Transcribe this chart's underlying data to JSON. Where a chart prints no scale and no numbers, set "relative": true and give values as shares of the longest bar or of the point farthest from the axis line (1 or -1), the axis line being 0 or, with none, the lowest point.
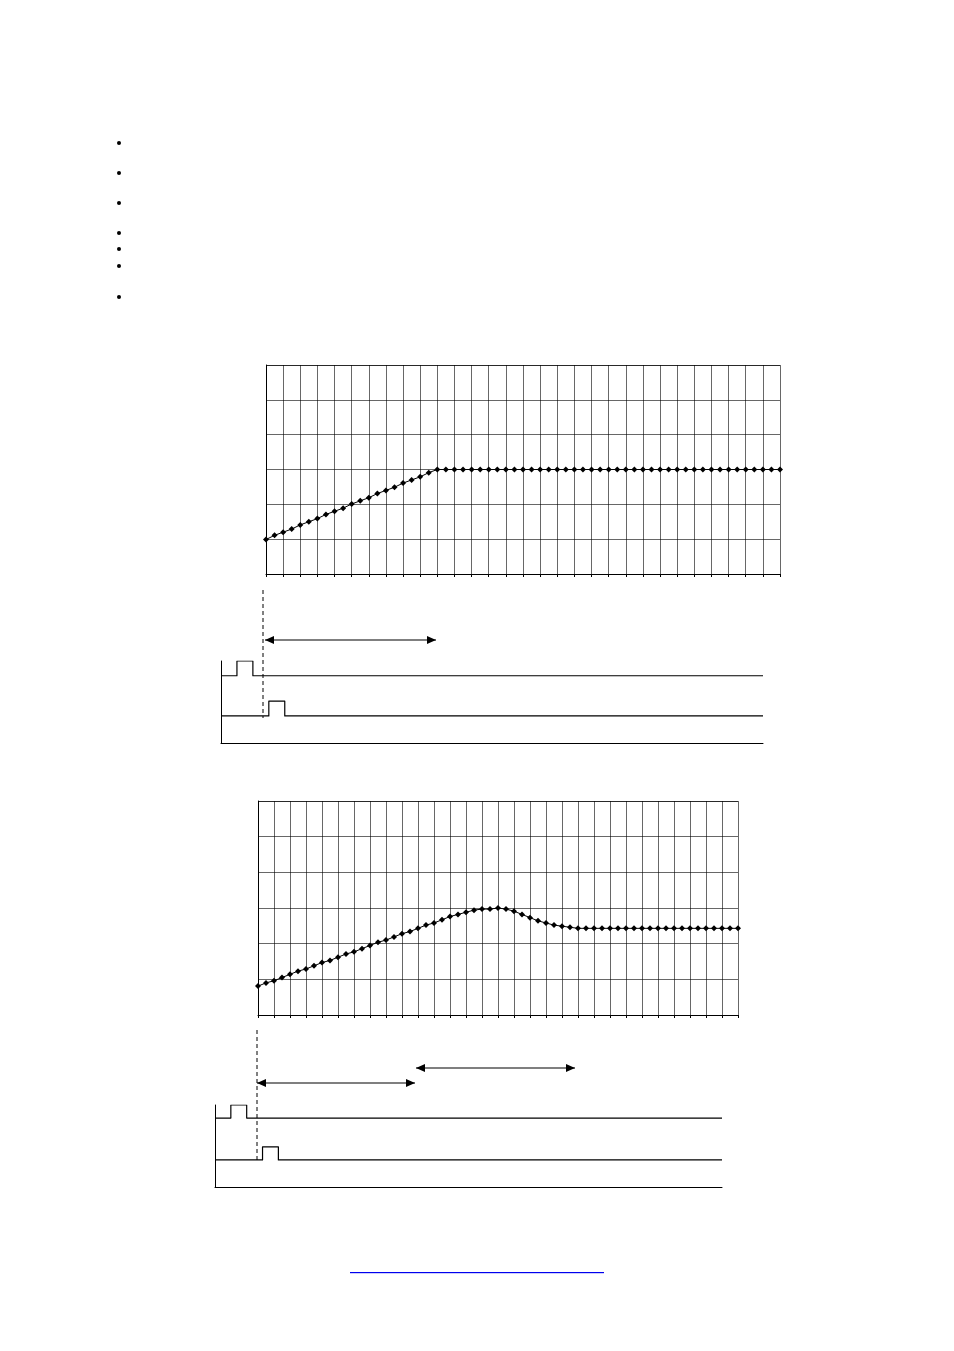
{
  "chart_data": [
    {
      "type": "line",
      "relative": true,
      "marker": "diamond",
      "grid": true,
      "categories": [
        null,
        null,
        null,
        null,
        null,
        null,
        null,
        null,
        null,
        null,
        null,
        null,
        null,
        null,
        null,
        null,
        null,
        null,
        null,
        null,
        null,
        null,
        null,
        null,
        null,
        null,
        null,
        null,
        null,
        null,
        null,
        null,
        null,
        null,
        null,
        null,
        null,
        null,
        null,
        null,
        null,
        null,
        null,
        null,
        null,
        null,
        null,
        null,
        null,
        null,
        null,
        null,
        null,
        null,
        null,
        null,
        null,
        null,
        null,
        null,
        null
      ],
      "series": [
        {
          "color": "#000000",
          "values": [
            0.33,
            0.37,
            0.4,
            0.43,
            0.47,
            0.5,
            0.53,
            0.57,
            0.6,
            0.63,
            0.67,
            0.7,
            0.73,
            0.77,
            0.8,
            0.83,
            0.87,
            0.9,
            0.93,
            0.97,
            1,
            1,
            1,
            1,
            1,
            1,
            1,
            1,
            1,
            1,
            1,
            1,
            1,
            1,
            1,
            1,
            1,
            1,
            1,
            1,
            1,
            1,
            1,
            1,
            1,
            1,
            1,
            1,
            1,
            1,
            1,
            1,
            1,
            1,
            1,
            1,
            1,
            1,
            1,
            1,
            1
          ]
        }
      ]
    },
    {
      "type": "step",
      "relative": true,
      "categories": [
        null,
        null,
        null,
        null,
        null,
        null,
        null,
        null,
        null,
        null,
        null,
        null,
        null,
        null,
        null,
        null,
        null,
        null,
        null,
        null,
        null,
        null,
        null,
        null,
        null,
        null,
        null,
        null,
        null,
        null,
        null,
        null,
        null,
        null,
        null
      ],
      "series": [
        {
          "color": "#000000",
          "values": [
            0.82,
            1,
            0.82,
            0.82,
            0.82,
            0.82,
            0.82,
            0.82,
            0.82,
            0.82,
            0.82,
            0.82,
            0.82,
            0.82,
            0.82,
            0.82,
            0.82,
            0.82,
            0.82,
            0.82,
            0.82,
            0.82,
            0.82,
            0.82,
            0.82,
            0.82,
            0.82,
            0.82,
            0.82,
            0.82,
            0.82,
            0.82,
            0.82,
            0.82,
            0.82
          ]
        },
        {
          "color": "#000000",
          "values": [
            0.33,
            0.33,
            0.33,
            0.51,
            0.33,
            0.33,
            0.33,
            0.33,
            0.33,
            0.33,
            0.33,
            0.33,
            0.33,
            0.33,
            0.33,
            0.33,
            0.33,
            0.33,
            0.33,
            0.33,
            0.33,
            0.33,
            0.33,
            0.33,
            0.33,
            0.33,
            0.33,
            0.33,
            0.33,
            0.33,
            0.33,
            0.33,
            0.33,
            0.33,
            0.33
          ]
        }
      ]
    },
    {
      "type": "line",
      "relative": true,
      "marker": "diamond",
      "grid": true,
      "categories": [
        null,
        null,
        null,
        null,
        null,
        null,
        null,
        null,
        null,
        null,
        null,
        null,
        null,
        null,
        null,
        null,
        null,
        null,
        null,
        null,
        null,
        null,
        null,
        null,
        null,
        null,
        null,
        null,
        null,
        null,
        null,
        null,
        null,
        null,
        null,
        null,
        null,
        null,
        null,
        null,
        null,
        null,
        null,
        null,
        null,
        null,
        null,
        null,
        null,
        null,
        null,
        null,
        null,
        null,
        null,
        null,
        null,
        null,
        null,
        null,
        null
      ],
      "series": [
        {
          "color": "#000000",
          "values": [
            0.27,
            0.3,
            0.32,
            0.35,
            0.38,
            0.41,
            0.43,
            0.46,
            0.49,
            0.51,
            0.54,
            0.57,
            0.59,
            0.62,
            0.65,
            0.68,
            0.7,
            0.73,
            0.76,
            0.78,
            0.81,
            0.84,
            0.86,
            0.89,
            0.92,
            0.94,
            0.96,
            0.98,
            0.99,
            0.99,
            1,
            0.99,
            0.97,
            0.94,
            0.91,
            0.88,
            0.86,
            0.84,
            0.83,
            0.82,
            0.81,
            0.81,
            0.81,
            0.81,
            0.81,
            0.81,
            0.81,
            0.81,
            0.81,
            0.81,
            0.81,
            0.81,
            0.81,
            0.81,
            0.81,
            0.81,
            0.81,
            0.81,
            0.81,
            0.81,
            0.81
          ]
        }
      ]
    },
    {
      "type": "step",
      "relative": true,
      "categories": [
        null,
        null,
        null,
        null,
        null,
        null,
        null,
        null,
        null,
        null,
        null,
        null,
        null,
        null,
        null,
        null,
        null,
        null,
        null,
        null,
        null,
        null,
        null,
        null,
        null,
        null,
        null,
        null,
        null,
        null,
        null,
        null,
        null
      ],
      "series": [
        {
          "color": "#000000",
          "values": [
            0.84,
            1,
            0.84,
            0.84,
            0.84,
            0.84,
            0.84,
            0.84,
            0.84,
            0.84,
            0.84,
            0.84,
            0.84,
            0.84,
            0.84,
            0.84,
            0.84,
            0.84,
            0.84,
            0.84,
            0.84,
            0.84,
            0.84,
            0.84,
            0.84,
            0.84,
            0.84,
            0.84,
            0.84,
            0.84,
            0.84,
            0.84,
            0.84
          ]
        },
        {
          "color": "#000000",
          "values": [
            0.33,
            0.33,
            0.33,
            0.49,
            0.33,
            0.33,
            0.33,
            0.33,
            0.33,
            0.33,
            0.33,
            0.33,
            0.33,
            0.33,
            0.33,
            0.33,
            0.33,
            0.33,
            0.33,
            0.33,
            0.33,
            0.33,
            0.33,
            0.33,
            0.33,
            0.33,
            0.33,
            0.33,
            0.33,
            0.33,
            0.33,
            0.33,
            0.33
          ]
        }
      ]
    }
  ]
}
